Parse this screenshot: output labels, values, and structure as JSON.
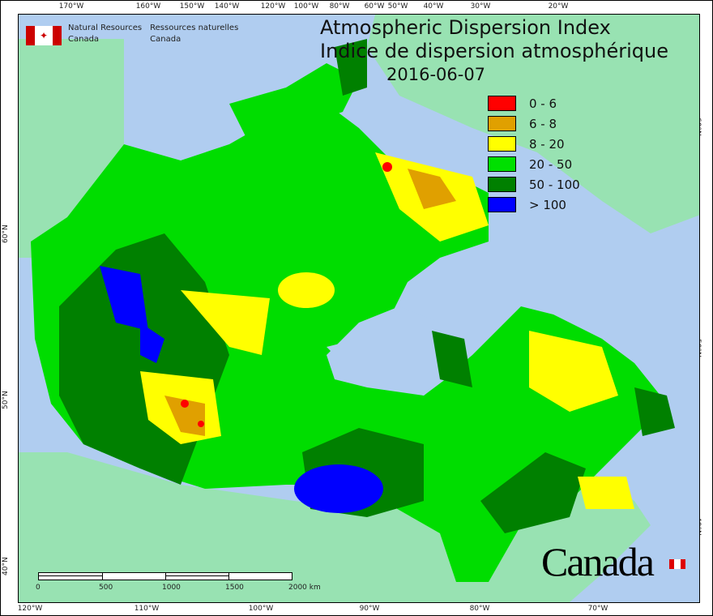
{
  "header": {
    "org_en": [
      "Natural Resources",
      "Canada"
    ],
    "org_fr": [
      "Ressources naturelles",
      "Canada"
    ],
    "title_en": "Atmospheric Dispersion Index",
    "title_fr": "Indice de dispersion atmosphérique",
    "date": "2016-06-07"
  },
  "legend": [
    {
      "label": "0 - 6",
      "color": "#ff0000"
    },
    {
      "label": "6 - 8",
      "color": "#e0a000"
    },
    {
      "label": "8 - 20",
      "color": "#ffff00"
    },
    {
      "label": "20 - 50",
      "color": "#00e000"
    },
    {
      "label": "50 - 100",
      "color": "#008000"
    },
    {
      "label": "> 100",
      "color": "#0000ff"
    }
  ],
  "axes": {
    "top": [
      "170°W",
      "160°W",
      "150°W",
      "140°W",
      "120°W",
      "100°W",
      "80°W",
      "60°W",
      "50°W",
      "40°W",
      "30°W",
      "20°W"
    ],
    "bottom": [
      "120°W",
      "110°W",
      "100°W",
      "90°W",
      "80°W",
      "70°W"
    ],
    "left": [
      "60°N",
      "50°N",
      "40°N"
    ],
    "right": [
      "60°N",
      "50°N",
      "40°N"
    ]
  },
  "scale_bar": {
    "labels": [
      "0",
      "500",
      "1000",
      "1500",
      "2000 km"
    ]
  },
  "wordmark": "Canada",
  "colors": {
    "water": "#b0cdf0",
    "land": "#98e2b2"
  }
}
